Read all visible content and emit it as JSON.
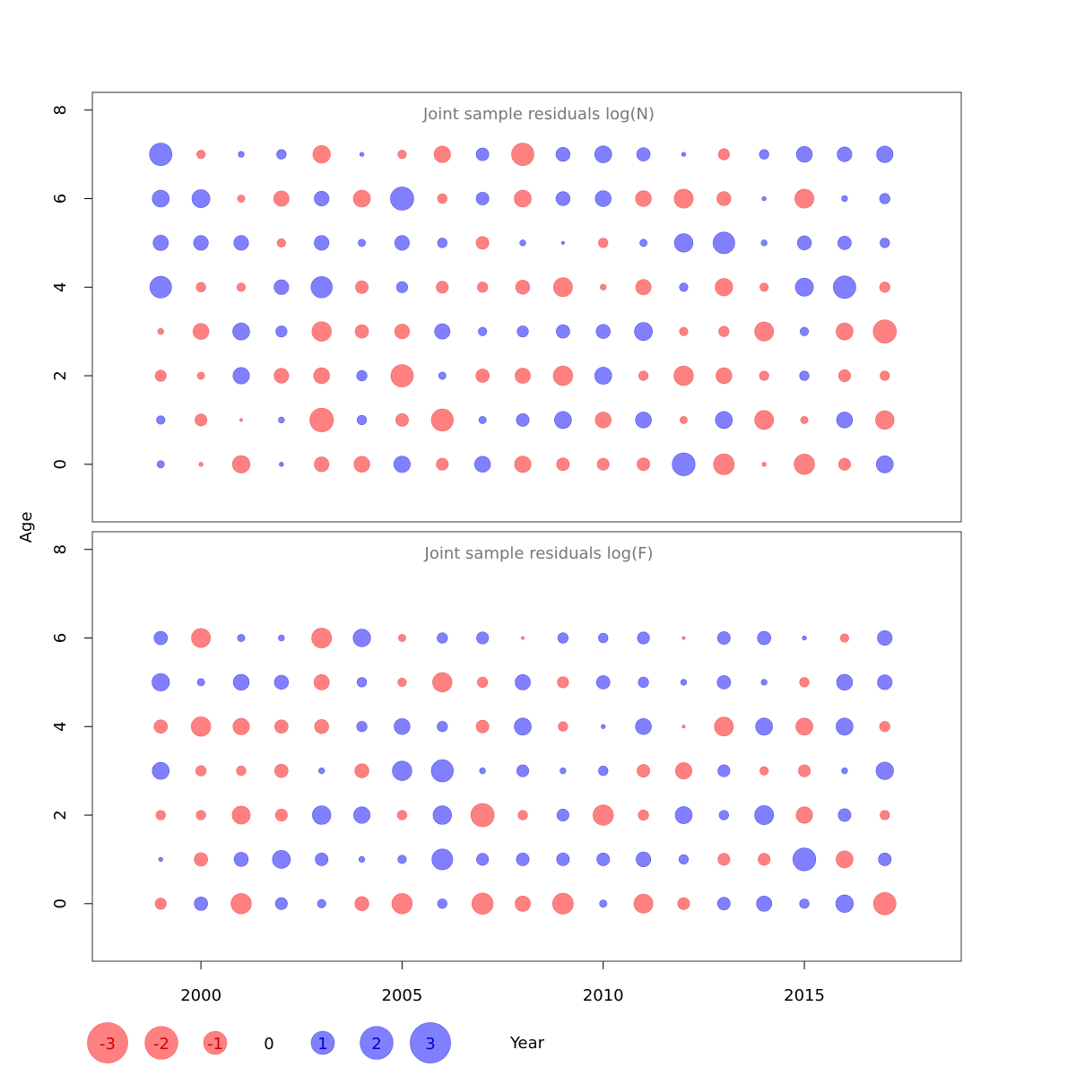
{
  "chart_data": {
    "type": "bubble",
    "xlabel": "Year",
    "ylabel": "Age",
    "x_ticks": [
      2000,
      2005,
      2010,
      2015
    ],
    "y_ticks": [
      0,
      2,
      4,
      6,
      8
    ],
    "xlim": [
      1997.3,
      2018.9
    ],
    "ylim": [
      -1.3,
      8.4
    ],
    "years": [
      1999,
      2000,
      2001,
      2002,
      2003,
      2004,
      2005,
      2006,
      2007,
      2008,
      2009,
      2010,
      2011,
      2012,
      2013,
      2014,
      2015,
      2016,
      2017
    ],
    "colors": {
      "positive": "#8080ff",
      "negative": "#ff8080",
      "positive_text": "#0000cc",
      "negative_text": "#cc0000"
    },
    "panels": [
      {
        "title": "Joint sample residuals log(N)",
        "ages": [
          0,
          1,
          2,
          3,
          4,
          5,
          6,
          7
        ],
        "residuals": [
          [
            0.3,
            -0.1,
            -1.7,
            0.1,
            -1.2,
            -1.4,
            1.5,
            -0.8,
            1.4,
            -1.5,
            -0.9,
            -0.8,
            -0.9,
            2.9,
            -2.4,
            -0.1,
            -2.3,
            -0.8,
            1.6
          ],
          [
            0.4,
            -0.8,
            -0.05,
            0.2,
            -3.1,
            0.5,
            -0.9,
            -2.7,
            0.3,
            0.9,
            1.6,
            -1.4,
            1.4,
            -0.3,
            1.6,
            -2.0,
            -0.3,
            1.4,
            -1.9
          ],
          [
            -0.7,
            -0.3,
            1.5,
            -1.2,
            -1.4,
            0.6,
            -2.8,
            0.3,
            -1.0,
            -1.3,
            -2.1,
            1.6,
            -0.5,
            -2.1,
            -1.4,
            -0.5,
            0.5,
            -0.8,
            -0.5
          ],
          [
            -0.2,
            -1.4,
            1.6,
            0.7,
            -2.1,
            -1.0,
            -1.2,
            1.3,
            0.4,
            0.7,
            1.0,
            1.1,
            1.8,
            -0.4,
            -0.6,
            -2.0,
            0.4,
            -1.6,
            -3.0
          ],
          [
            2.6,
            -0.5,
            -0.4,
            1.2,
            2.5,
            -0.9,
            0.7,
            -0.8,
            -0.6,
            -1.1,
            -2.0,
            -0.2,
            -1.3,
            0.4,
            -1.7,
            -0.4,
            1.8,
            2.8,
            -0.6
          ],
          [
            1.3,
            1.2,
            1.2,
            -0.4,
            1.2,
            0.3,
            1.2,
            0.5,
            -0.9,
            0.2,
            0.05,
            -0.5,
            0.3,
            1.9,
            2.6,
            0.2,
            1.1,
            1.0,
            0.5
          ],
          [
            1.6,
            1.8,
            -0.3,
            -1.3,
            1.2,
            -1.6,
            3.0,
            -0.5,
            0.9,
            -1.6,
            1.1,
            1.4,
            -1.4,
            -2.0,
            -1.1,
            0.1,
            -2.0,
            0.2,
            0.6
          ],
          [
            2.8,
            -0.4,
            0.2,
            0.5,
            -1.7,
            0.1,
            -0.4,
            -1.5,
            0.9,
            -2.8,
            1.1,
            1.6,
            1.0,
            0.1,
            -0.7,
            0.5,
            1.4,
            1.2,
            1.5
          ]
        ]
      },
      {
        "title": "Joint sample residuals log(F)",
        "ages": [
          0,
          1,
          2,
          3,
          4,
          5,
          6
        ],
        "residuals": [
          [
            -0.7,
            1.0,
            -2.3,
            0.8,
            0.4,
            -1.1,
            -2.3,
            0.5,
            -2.5,
            -1.3,
            -2.4,
            0.3,
            -2.0,
            -0.8,
            0.9,
            1.3,
            0.5,
            1.7,
            -2.8
          ],
          [
            0.1,
            -1.0,
            1.1,
            1.8,
            0.9,
            0.2,
            0.4,
            2.4,
            0.8,
            0.9,
            0.9,
            0.9,
            1.2,
            0.5,
            -0.8,
            -0.8,
            2.9,
            -1.6,
            0.9
          ],
          [
            -0.5,
            -0.5,
            -1.8,
            -0.8,
            1.9,
            1.5,
            -0.5,
            1.9,
            -3.0,
            -0.5,
            0.8,
            -2.3,
            -0.6,
            1.6,
            0.5,
            2.0,
            -1.5,
            0.9,
            -0.5
          ],
          [
            1.6,
            -0.6,
            -0.5,
            -1.0,
            0.2,
            -1.1,
            2.1,
            2.7,
            0.2,
            0.8,
            0.2,
            0.5,
            -0.9,
            -1.5,
            0.8,
            -0.4,
            -0.8,
            0.2,
            1.7
          ],
          [
            -1.0,
            -2.1,
            -1.5,
            -1.0,
            -1.1,
            0.6,
            1.4,
            0.6,
            -0.9,
            1.6,
            -0.5,
            0.1,
            1.4,
            -0.05,
            -2.0,
            1.6,
            -1.6,
            1.6,
            -0.6
          ],
          [
            1.7,
            0.3,
            1.4,
            1.1,
            -1.3,
            0.5,
            -0.4,
            -2.1,
            -0.6,
            1.3,
            -0.7,
            1.0,
            0.6,
            0.2,
            1.0,
            0.2,
            -0.5,
            1.4,
            1.2
          ],
          [
            1.0,
            -2.0,
            0.3,
            0.2,
            -2.2,
            1.7,
            -0.3,
            0.6,
            0.8,
            -0.05,
            0.6,
            0.5,
            0.8,
            -0.05,
            0.9,
            1.0,
            0.1,
            -0.4,
            1.2
          ]
        ]
      }
    ],
    "legend": {
      "entries": [
        {
          "label": "-3",
          "value": -3
        },
        {
          "label": "-2",
          "value": -2
        },
        {
          "label": "-1",
          "value": -1
        },
        {
          "label": "0",
          "value": 0
        },
        {
          "label": "1",
          "value": 1
        },
        {
          "label": "2",
          "value": 2
        },
        {
          "label": "3",
          "value": 3
        }
      ],
      "title": "Year"
    }
  }
}
